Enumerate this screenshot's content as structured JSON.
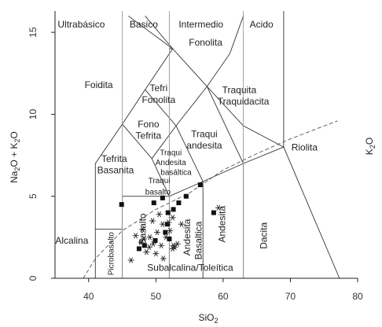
{
  "chart_data": {
    "type": "scatter",
    "title": "",
    "xlabel": "SiO",
    "xlabel_sub": "2",
    "ylabel": "Na",
    "ylabel_parts": [
      "Na",
      "2",
      "O + K",
      "2",
      "O"
    ],
    "right_label": "K",
    "right_label_sub": "2",
    "right_label_tail": "O",
    "xlim": [
      35,
      80
    ],
    "ylim": [
      0,
      16.3
    ],
    "x_ticks": [
      40,
      50,
      60,
      70,
      80
    ],
    "y_ticks": [
      0,
      5,
      10,
      15
    ],
    "grid": false,
    "region_boundaries": [
      {
        "points": [
          [
            41,
            0
          ],
          [
            41,
            3
          ],
          [
            45,
            3
          ]
        ]
      },
      {
        "points": [
          [
            41,
            3
          ],
          [
            41,
            7
          ],
          [
            45,
            9.4
          ],
          [
            48.4,
            11.5
          ],
          [
            52.5,
            14
          ],
          [
            57.6,
            11.7
          ],
          [
            63,
            9.3
          ],
          [
            69,
            8
          ]
        ]
      },
      {
        "points": [
          [
            45,
            0
          ],
          [
            45,
            5
          ],
          [
            52,
            5
          ],
          [
            57,
            5.9
          ],
          [
            63,
            7
          ],
          [
            69,
            8
          ],
          [
            69,
            13
          ],
          [
            69,
            16.3
          ]
        ]
      },
      {
        "points": [
          [
            52,
            0
          ],
          [
            52,
            5
          ],
          [
            49.4,
            7.3
          ],
          [
            45,
            9.4
          ]
        ]
      },
      {
        "points": [
          [
            57,
            0
          ],
          [
            57,
            5.9
          ],
          [
            53,
            9.3
          ],
          [
            48.4,
            11.5
          ]
        ]
      },
      {
        "points": [
          [
            63,
            0
          ],
          [
            63,
            7
          ],
          [
            57.6,
            11.7
          ]
        ]
      },
      {
        "points": [
          [
            69,
            8
          ],
          [
            77.3,
            0
          ]
        ]
      },
      {
        "points": [
          [
            52,
            14
          ],
          [
            52.5,
            14
          ],
          [
            48.4,
            16
          ]
        ]
      },
      {
        "points": [
          [
            49.4,
            7.3
          ],
          [
            53,
            9.3
          ],
          [
            57.6,
            11.7
          ],
          [
            61,
            13.7
          ],
          [
            63,
            16
          ]
        ]
      },
      {
        "points": [
          [
            52.5,
            14
          ],
          [
            45.9,
            16
          ]
        ]
      }
    ],
    "dashed_lines": [
      {
        "points": [
          [
            39.2,
            0
          ],
          [
            41,
            1.2
          ],
          [
            45,
            2.9
          ],
          [
            50,
            4.2
          ],
          [
            55,
            5.2
          ],
          [
            60,
            6.6
          ],
          [
            65,
            7.6
          ],
          [
            70,
            8.5
          ],
          [
            77,
            9.6
          ]
        ]
      },
      {
        "points": [
          [
            45,
            0
          ],
          [
            45,
            16.3
          ]
        ]
      },
      {
        "points": [
          [
            52,
            0
          ],
          [
            52,
            16.3
          ]
        ]
      },
      {
        "points": [
          [
            63,
            0
          ],
          [
            63,
            16.3
          ]
        ]
      }
    ],
    "series": [
      {
        "marker": "square",
        "points": [
          [
            44.9,
            4.5
          ],
          [
            49.7,
            4.6
          ],
          [
            51.0,
            4.9
          ],
          [
            51.7,
            3.3
          ],
          [
            52.6,
            4.2
          ],
          [
            53.4,
            4.6
          ],
          [
            54.5,
            5.0
          ],
          [
            56.6,
            5.7
          ],
          [
            58.6,
            4.0
          ],
          [
            51.4,
            2.8
          ],
          [
            51.8,
            4.0
          ],
          [
            49.9,
            2.3
          ],
          [
            48.3,
            2.0
          ],
          [
            47.5,
            1.8
          ],
          [
            52.0,
            2.4
          ]
        ]
      },
      {
        "marker": "star",
        "points": [
          [
            47.0,
            2.6
          ],
          [
            48.0,
            3.0
          ],
          [
            49.0,
            1.9
          ],
          [
            50.2,
            2.8
          ],
          [
            51.5,
            2.5
          ],
          [
            52.1,
            2.9
          ],
          [
            49.5,
            3.5
          ],
          [
            50.5,
            3.9
          ],
          [
            51.0,
            3.3
          ],
          [
            47.8,
            2.2
          ],
          [
            48.6,
            1.6
          ],
          [
            50.0,
            1.5
          ],
          [
            52.5,
            1.8
          ],
          [
            53.2,
            2.1
          ],
          [
            46.3,
            1.1
          ],
          [
            59.3,
            4.3
          ],
          [
            51.9,
            3.4
          ],
          [
            49.1,
            2.5
          ],
          [
            52.8,
            1.9
          ],
          [
            52.6,
            2.0
          ],
          [
            48.2,
            2.4
          ],
          [
            51.1,
            1.2
          ],
          [
            53.8,
            3.3
          ],
          [
            52.5,
            3.7
          ],
          [
            49.6,
            2.1
          ],
          [
            50.8,
            2.0
          ]
        ]
      }
    ],
    "region_labels": [
      {
        "text": "Ultrabásico",
        "x": 38.9,
        "y": 15.3
      },
      {
        "text": "Basico",
        "x": 48.2,
        "y": 15.3
      },
      {
        "text": "Intermedio",
        "x": 56.7,
        "y": 15.3
      },
      {
        "text": "Acido",
        "x": 65.7,
        "y": 15.3
      },
      {
        "text": "Fonolita",
        "x": 57.4,
        "y": 14.2
      },
      {
        "text": "Foidita",
        "x": 41.5,
        "y": 11.6
      },
      {
        "text": "Tefri",
        "x": 50.4,
        "y": 11.4
      },
      {
        "text": "Fonolita",
        "x": 50.4,
        "y": 10.7
      },
      {
        "text": "Traquita",
        "x": 62.4,
        "y": 11.3
      },
      {
        "text": "Traquidacita",
        "x": 63.0,
        "y": 10.6
      },
      {
        "text": "Fono",
        "x": 48.9,
        "y": 9.2
      },
      {
        "text": "Tefrita",
        "x": 48.9,
        "y": 8.5
      },
      {
        "text": "Traqui",
        "x": 57.2,
        "y": 8.6
      },
      {
        "text": "andesita",
        "x": 57.2,
        "y": 7.9
      },
      {
        "text": "Riolita",
        "x": 72.1,
        "y": 7.8
      },
      {
        "text": "Tefrita",
        "x": 43.8,
        "y": 7.1
      },
      {
        "text": "Basanita",
        "x": 44.0,
        "y": 6.4
      },
      {
        "text": "Traqui",
        "x": 52.2,
        "y": 7.5
      },
      {
        "text": "Andesita",
        "x": 52.2,
        "y": 6.9
      },
      {
        "text": "basáltica",
        "x": 53.0,
        "y": 6.3
      },
      {
        "text": "Traqui",
        "x": 50.5,
        "y": 5.8
      },
      {
        "text": "basalto",
        "x": 50.3,
        "y": 5.1
      },
      {
        "text": "Alcalina",
        "x": 37.5,
        "y": 2.1
      },
      {
        "text": "Subalcalina/Toleítica",
        "x": 55.1,
        "y": 0.45
      }
    ],
    "rotated_labels": [
      {
        "text": "Picrobasalto",
        "x": 43.7,
        "y": 1.5,
        "angle": -90
      },
      {
        "text": "Basalto",
        "x": 48.5,
        "y": 3.0,
        "angle": -90
      },
      {
        "text": "Andesita",
        "x": 55.1,
        "y": 2.5,
        "angle": -90
      },
      {
        "text": "Basaltica",
        "x": 56.8,
        "y": 2.3,
        "angle": -90
      },
      {
        "text": "Andesita",
        "x": 60.3,
        "y": 3.3,
        "angle": -90
      },
      {
        "text": "Dacita",
        "x": 66.5,
        "y": 2.6,
        "angle": -90
      }
    ]
  }
}
